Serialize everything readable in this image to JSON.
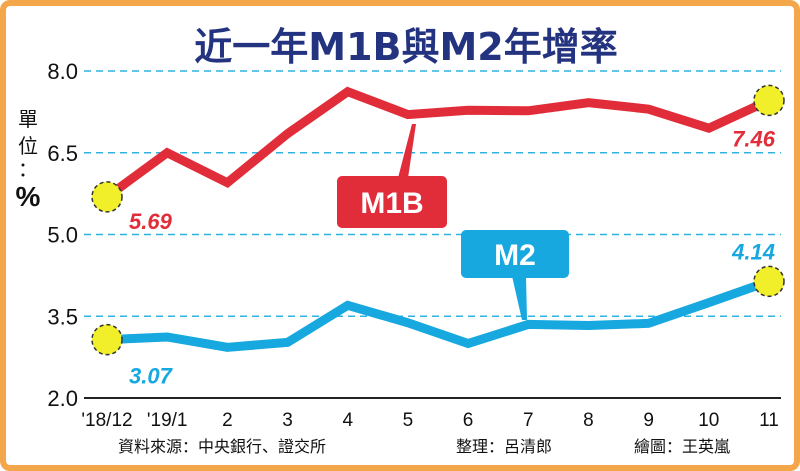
{
  "chart_data": {
    "type": "line",
    "title": "近一年M1B與M2年增率",
    "unit_label": "單位：",
    "unit_symbol": "%",
    "categories": [
      "'18/12",
      "'19/1",
      "2",
      "3",
      "4",
      "5",
      "6",
      "7",
      "8",
      "9",
      "10",
      "11"
    ],
    "ylim": [
      2.0,
      8.0
    ],
    "yticks": [
      "2.0",
      "3.5",
      "5.0",
      "6.5",
      "8.0"
    ],
    "grid": true,
    "series": [
      {
        "name": "M1B",
        "color": "#e12d39",
        "values": [
          5.69,
          6.5,
          5.95,
          6.85,
          7.62,
          7.2,
          7.28,
          7.27,
          7.42,
          7.3,
          6.95,
          7.46
        ],
        "labels": [
          {
            "index": 0,
            "text": "5.69"
          },
          {
            "index": 11,
            "text": "7.46"
          }
        ]
      },
      {
        "name": "M2",
        "color": "#16a8df",
        "values": [
          3.07,
          3.12,
          2.93,
          3.02,
          3.7,
          3.38,
          3.0,
          3.35,
          3.33,
          3.37,
          3.75,
          4.14
        ],
        "labels": [
          {
            "index": 0,
            "text": "3.07"
          },
          {
            "index": 11,
            "text": "4.14"
          }
        ]
      }
    ]
  },
  "credits": {
    "source": "資料來源：中央銀行、證交所",
    "editor": "整理：呂清郎",
    "artist": "繪圖：王英嵐"
  }
}
